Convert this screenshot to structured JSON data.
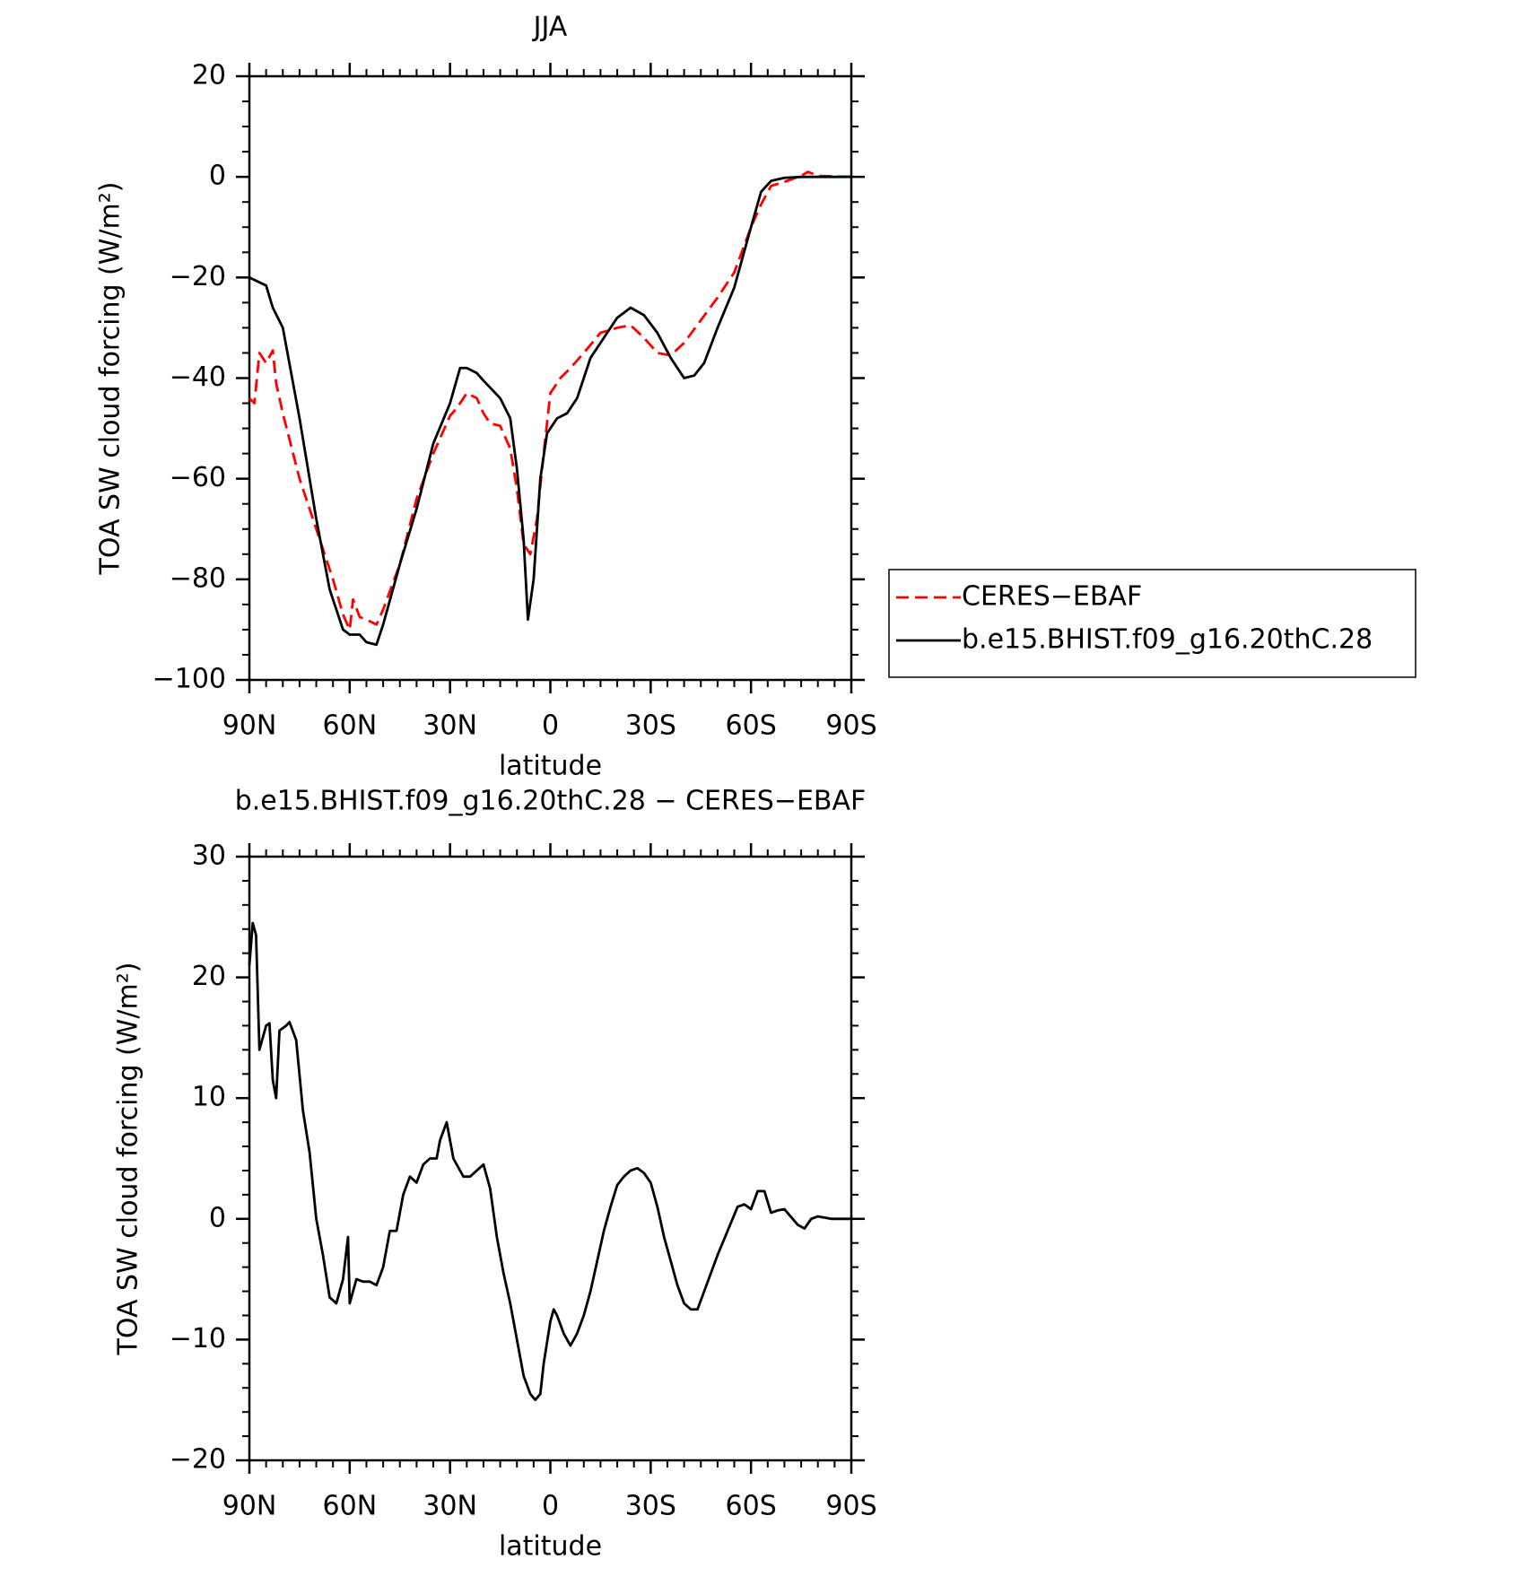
{
  "chart_data": [
    {
      "type": "line",
      "title": "JJA",
      "xlabel": "latitude",
      "ylabel": "TOA SW cloud forcing (W/m²)",
      "xlim": [
        90,
        -90
      ],
      "xticks": [
        {
          "value": 90,
          "label": "90N"
        },
        {
          "value": 60,
          "label": "60N"
        },
        {
          "value": 30,
          "label": "30N"
        },
        0,
        {
          "value": -30,
          "label": "30S"
        },
        {
          "value": -60,
          "label": "60S"
        },
        {
          "value": -90,
          "label": "90S"
        }
      ],
      "ylim": [
        -100,
        20
      ],
      "yticks": [
        {
          "value": -100,
          "label": "−100"
        },
        {
          "value": -80,
          "label": "−80"
        },
        {
          "value": -60,
          "label": "−60"
        },
        {
          "value": -40,
          "label": "−40"
        },
        {
          "value": -20,
          "label": "−20"
        },
        0,
        20
      ],
      "legend": "right",
      "series": [
        {
          "name": "CERES−EBAF",
          "color": "#ff0000",
          "dash": true,
          "x": [
            90,
            88.5,
            87,
            85,
            83,
            82,
            80,
            75,
            70,
            65,
            62,
            60,
            59,
            57,
            55,
            52,
            50,
            45,
            40,
            35,
            30,
            28,
            25,
            22,
            20,
            18,
            15,
            12,
            10,
            8,
            6,
            4,
            2,
            0,
            -3,
            -6,
            -10,
            -15,
            -20,
            -24,
            -28,
            -32,
            -36,
            -40,
            -45,
            -50,
            -55,
            -60,
            -63,
            -66,
            -70,
            -75,
            -77,
            -80,
            -90
          ],
          "values": [
            -44,
            -45,
            -35,
            -37,
            -34.5,
            -41,
            -47,
            -60,
            -70,
            -80,
            -87,
            -90,
            -84,
            -87.5,
            -88,
            -89,
            -86,
            -77,
            -64,
            -55,
            -47.5,
            -46,
            -43,
            -44,
            -47,
            -49,
            -49.5,
            -54,
            -62,
            -73,
            -75,
            -68,
            -55,
            -43,
            -40,
            -38,
            -35,
            -31,
            -30,
            -29.5,
            -32,
            -35,
            -35.5,
            -33,
            -28.5,
            -24,
            -19,
            -10,
            -5.5,
            -1.8,
            -1,
            0.2,
            1,
            0.2,
            0
          ]
        },
        {
          "name": "b.e15.BHIST.f09_g16.20thC.28",
          "color": "#000000",
          "dash": false,
          "x": [
            90,
            85,
            83,
            80,
            75,
            70,
            66,
            62,
            60,
            57,
            55,
            52,
            50,
            45,
            40,
            35,
            30,
            27,
            25,
            22,
            20,
            15,
            12,
            10,
            8,
            6.7,
            5,
            3,
            1,
            -2,
            -5,
            -8,
            -12,
            -16,
            -20,
            -24,
            -28,
            -32,
            -36,
            -40,
            -43,
            -46,
            -50,
            -55,
            -60,
            -63,
            -66,
            -70,
            -75,
            -90
          ],
          "values": [
            -20,
            -21.6,
            -26,
            -30,
            -48,
            -68,
            -82,
            -90,
            -91,
            -91,
            -92.5,
            -93,
            -89,
            -77,
            -66,
            -53,
            -45,
            -38,
            -38,
            -39,
            -40.5,
            -44,
            -48,
            -58,
            -72,
            -88,
            -80,
            -60,
            -51,
            -48,
            -47,
            -44,
            -36,
            -32,
            -28,
            -26,
            -27.5,
            -31,
            -36,
            -40,
            -39.5,
            -37,
            -30,
            -22,
            -10,
            -3,
            -0.8,
            -0.2,
            0,
            0
          ]
        }
      ]
    },
    {
      "type": "line",
      "title": "b.e15.BHIST.f09_g16.20thC.28 − CERES−EBAF",
      "xlabel": "latitude",
      "ylabel": "TOA SW cloud forcing (W/m²)",
      "xlim": [
        90,
        -90
      ],
      "xticks": [
        {
          "value": 90,
          "label": "90N"
        },
        {
          "value": 60,
          "label": "60N"
        },
        {
          "value": 30,
          "label": "30N"
        },
        0,
        {
          "value": -30,
          "label": "30S"
        },
        {
          "value": -60,
          "label": "60S"
        },
        {
          "value": -90,
          "label": "90S"
        }
      ],
      "ylim": [
        -20,
        30
      ],
      "yticks": [
        {
          "value": -20,
          "label": "−20"
        },
        {
          "value": -10,
          "label": "−10"
        },
        0,
        10,
        20,
        30
      ],
      "series": [
        {
          "color": "#000000",
          "dash": false,
          "x": [
            90,
            89,
            88,
            87,
            85,
            84,
            83,
            82,
            81,
            79,
            78,
            76,
            74,
            72,
            70,
            68,
            66,
            64,
            62,
            60.5,
            60,
            58,
            56,
            54,
            52,
            50,
            48,
            46,
            44,
            42,
            40,
            38,
            36,
            34,
            33,
            31,
            29,
            26,
            24,
            22,
            20,
            18,
            16,
            14,
            12,
            10,
            8,
            6,
            4.5,
            3,
            2,
            0,
            -1,
            -2,
            -4,
            -6,
            -8,
            -10,
            -12,
            -14,
            -16,
            -18,
            -20,
            -22,
            -24,
            -26,
            -28,
            -30,
            -32,
            -34,
            -36,
            -38,
            -40,
            -42,
            -44,
            -46,
            -48,
            -50,
            -53,
            -56,
            -58,
            -60,
            -62,
            -64,
            -66,
            -68,
            -70,
            -74,
            -76,
            -78,
            -80,
            -84,
            -90
          ],
          "values": [
            21,
            24.5,
            23.5,
            14,
            16,
            16.2,
            11.5,
            10,
            15.6,
            16,
            16.3,
            14.8,
            9,
            5.5,
            0,
            -3,
            -6.5,
            -7,
            -5,
            -1.5,
            -7,
            -5,
            -5.2,
            -5.2,
            -5.5,
            -4,
            -1,
            -1,
            2,
            3.5,
            3,
            4.5,
            5,
            5,
            6.5,
            8,
            5,
            3.5,
            3.5,
            4,
            4.5,
            2.5,
            -1.5,
            -4.5,
            -7,
            -10,
            -13,
            -14.5,
            -15,
            -14.5,
            -12,
            -8.5,
            -7.5,
            -8,
            -9.5,
            -10.5,
            -9.5,
            -8,
            -6,
            -3.5,
            -1,
            1,
            2.8,
            3.5,
            4,
            4.2,
            3.8,
            3,
            1,
            -1.5,
            -3.5,
            -5.5,
            -7,
            -7.5,
            -7.5,
            -6,
            -4.5,
            -3,
            -1,
            1,
            1.2,
            0.8,
            2.3,
            2.3,
            0.5,
            0.7,
            0.8,
            -0.5,
            -0.8,
            0,
            0.2,
            0,
            0
          ]
        }
      ]
    }
  ]
}
